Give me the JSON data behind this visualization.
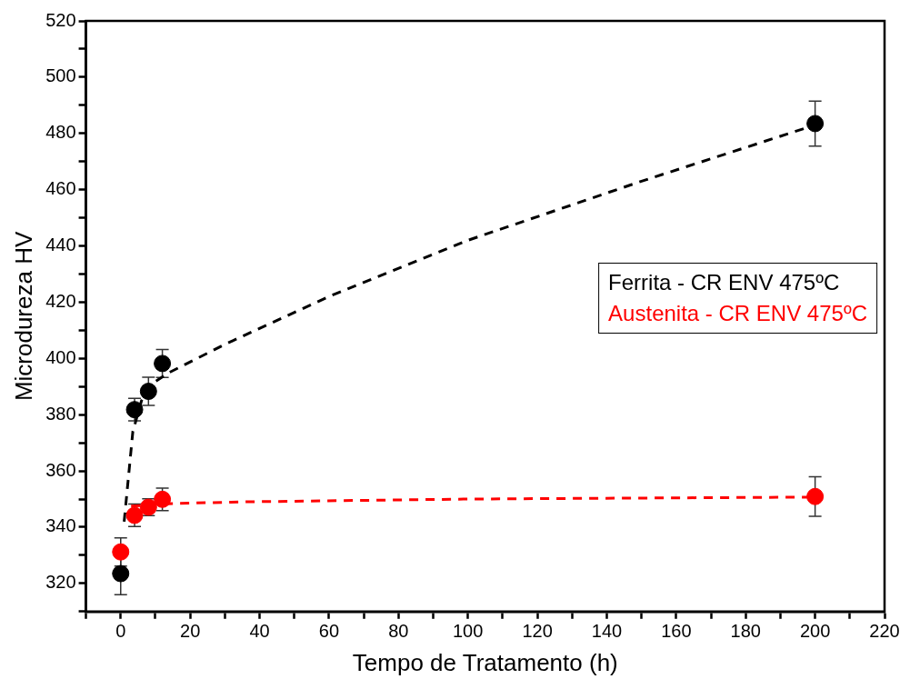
{
  "chart_data": {
    "type": "scatter",
    "xlabel": "Tempo de Tratamento (h)",
    "ylabel": "Microdureza HV",
    "xlim": [
      -10,
      220
    ],
    "xticks": [
      {
        "value": -10,
        "label": null
      },
      0,
      {
        "value": 10,
        "label": null
      },
      20,
      {
        "value": 30,
        "label": null
      },
      40,
      {
        "value": 50,
        "label": null
      },
      60,
      {
        "value": 70,
        "label": null
      },
      80,
      {
        "value": 90,
        "label": null
      },
      100,
      {
        "value": 110,
        "label": null
      },
      120,
      {
        "value": 130,
        "label": null
      },
      140,
      {
        "value": 150,
        "label": null
      },
      160,
      {
        "value": 170,
        "label": null
      },
      180,
      {
        "value": 190,
        "label": null
      },
      200,
      {
        "value": 210,
        "label": null
      },
      220
    ],
    "ylim": [
      310,
      520
    ],
    "yticks": [
      {
        "value": 310,
        "label": null
      },
      320,
      {
        "value": 330,
        "label": null
      },
      340,
      {
        "value": 350,
        "label": null
      },
      360,
      {
        "value": 370,
        "label": null
      },
      380,
      {
        "value": 390,
        "label": null
      },
      400,
      {
        "value": 410,
        "label": null
      },
      420,
      {
        "value": 430,
        "label": null
      },
      440,
      {
        "value": 450,
        "label": null
      },
      460,
      {
        "value": 470,
        "label": null
      },
      480,
      {
        "value": 490,
        "label": null
      },
      500,
      {
        "value": 510,
        "label": null
      },
      520
    ],
    "grid": false,
    "legend": "right",
    "marker": "circle",
    "series": [
      {
        "type": "line",
        "color": "#000000",
        "line_style": "dashed",
        "marker": "none",
        "x": [
          1,
          3.5,
          6,
          9,
          14,
          30,
          60,
          100,
          150,
          200
        ],
        "values": [
          342,
          374,
          385,
          391,
          395,
          405,
          422,
          442,
          463,
          483
        ]
      },
      {
        "type": "line",
        "color": "#ff0000",
        "line_style": "dashed",
        "marker": "none",
        "x": [
          3,
          15,
          35,
          100,
          200
        ],
        "values": [
          347.5,
          348.4,
          349,
          350,
          350.7
        ]
      },
      {
        "name": "Ferrita - CR ENV 475ºC",
        "color": "#000000",
        "x": [
          0,
          4,
          8,
          12,
          200
        ],
        "values": [
          323.5,
          381.8,
          388.3,
          398.2,
          483.5
        ],
        "errors": [
          7.5,
          4,
          5,
          5,
          8
        ]
      },
      {
        "name": "Austenita - CR ENV 475ºC",
        "color": "#ff0000",
        "x": [
          0,
          4,
          8,
          12,
          200
        ],
        "values": [
          331.2,
          344.2,
          347.1,
          349.9,
          350.9
        ],
        "errors": [
          5,
          4,
          3,
          4,
          7
        ]
      }
    ]
  }
}
